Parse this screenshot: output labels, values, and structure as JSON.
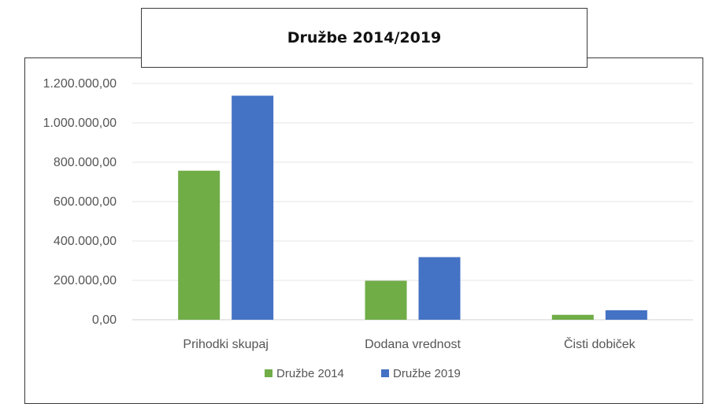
{
  "title": "Družbe 2014/2019",
  "chart_data": {
    "type": "bar",
    "title": "Družbe 2014/2019",
    "categories": [
      "Prihodki skupaj",
      "Dodana vrednost",
      "Čisti dobiček"
    ],
    "series": [
      {
        "name": "Družbe 2014",
        "color": "#70ad47",
        "values": [
          757000,
          198000,
          25000
        ]
      },
      {
        "name": "Družbe 2019",
        "color": "#4472c4",
        "values": [
          1138000,
          318000,
          48000
        ]
      }
    ],
    "y_ticks": [
      "0,00",
      "200.000,00",
      "400.000,00",
      "600.000,00",
      "800.000,00",
      "1.000.000,00",
      "1.200.000,00"
    ],
    "ylim": [
      0,
      1200000
    ],
    "grid": true,
    "legend_position": "bottom",
    "xlabel": "",
    "ylabel": ""
  }
}
